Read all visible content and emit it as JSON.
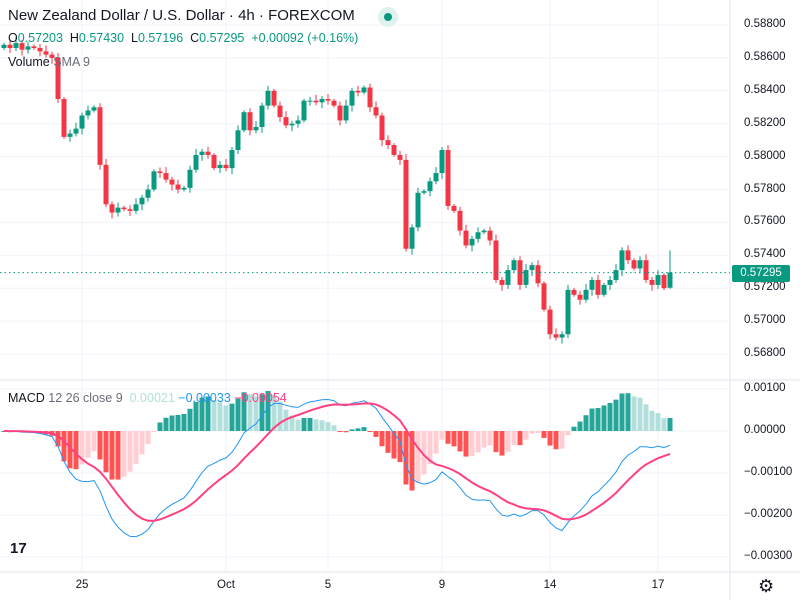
{
  "header": {
    "title": "New Zealand Dollar / U.S. Dollar · 4h · FOREXCOM",
    "ohlc": {
      "o_label": "O",
      "o": "0.57203",
      "h_label": "H",
      "h": "0.57430",
      "l_label": "L",
      "l": "0.57196",
      "c_label": "C",
      "c": "0.57295",
      "change": "+0.00092 (+0.16%)"
    },
    "volume_label": "Volume",
    "volume_sma": "SMA 9",
    "status_icon": "market-open-dot"
  },
  "macd_legend": {
    "label": "MACD",
    "params": "12 26 close 9",
    "hist": "0.00021",
    "macd": "−0.00033",
    "signal": "−0.00054"
  },
  "price_axis": [
    "0.58800",
    "0.58600",
    "0.58400",
    "0.58200",
    "0.58000",
    "0.57800",
    "0.57600",
    "0.57400",
    "0.57200",
    "0.57000",
    "0.56800"
  ],
  "current_price": "0.57295",
  "macd_axis": [
    "0.00100",
    "0.00000",
    "−0.00100",
    "−0.00200",
    "−0.00300"
  ],
  "time_axis": [
    {
      "label": "25",
      "bar": 13
    },
    {
      "label": "Oct",
      "bar": 37
    },
    {
      "label": "5",
      "bar": 54
    },
    {
      "label": "9",
      "bar": 73
    },
    {
      "label": "14",
      "bar": 91
    },
    {
      "label": "17",
      "bar": 109
    }
  ],
  "colors": {
    "up": "#089981",
    "down": "#f23645",
    "macd": "#2196f3",
    "signal": "#ff4081",
    "grid": "#f0f3fa"
  },
  "chart_data": {
    "type": "candlestick",
    "title": "New Zealand Dollar / U.S. Dollar · 4h · FOREXCOM",
    "ylim": [
      0.568,
      0.588
    ],
    "macd_ylim": [
      -0.003,
      0.001
    ],
    "first_open": 0.5866,
    "closes": [
      0.5868,
      0.5866,
      0.5869,
      0.5865,
      0.5867,
      0.5866,
      0.5864,
      0.5862,
      0.586,
      0.5835,
      0.5812,
      0.5814,
      0.5817,
      0.5825,
      0.5828,
      0.583,
      0.5795,
      0.5771,
      0.5766,
      0.5769,
      0.5768,
      0.5767,
      0.5771,
      0.5775,
      0.578,
      0.5791,
      0.579,
      0.5786,
      0.5783,
      0.578,
      0.5781,
      0.5792,
      0.5801,
      0.5803,
      0.5801,
      0.5793,
      0.5795,
      0.5793,
      0.5804,
      0.5816,
      0.5827,
      0.5816,
      0.5818,
      0.5831,
      0.584,
      0.5831,
      0.5824,
      0.5819,
      0.582,
      0.5822,
      0.5834,
      0.5834,
      0.5833,
      0.5835,
      0.5834,
      0.5831,
      0.5822,
      0.5831,
      0.584,
      0.5839,
      0.5842,
      0.583,
      0.5825,
      0.581,
      0.5807,
      0.5801,
      0.5798,
      0.5744,
      0.5757,
      0.5778,
      0.5779,
      0.5785,
      0.579,
      0.5804,
      0.577,
      0.5767,
      0.5755,
      0.5746,
      0.575,
      0.5754,
      0.5755,
      0.5749,
      0.5725,
      0.5722,
      0.5731,
      0.5737,
      0.5722,
      0.5731,
      0.5734,
      0.5723,
      0.5707,
      0.5692,
      0.569,
      0.5692,
      0.5719,
      0.5716,
      0.5713,
      0.5719,
      0.5725,
      0.5716,
      0.5722,
      0.5725,
      0.5731,
      0.5743,
      0.5737,
      0.5732,
      0.5737,
      0.5725,
      0.5722,
      0.5728,
      0.572,
      0.57295
    ],
    "last_bar": {
      "open": 0.57203,
      "high": 0.5743,
      "low": 0.57196,
      "close": 0.57295
    },
    "wick": 0.0003
  }
}
